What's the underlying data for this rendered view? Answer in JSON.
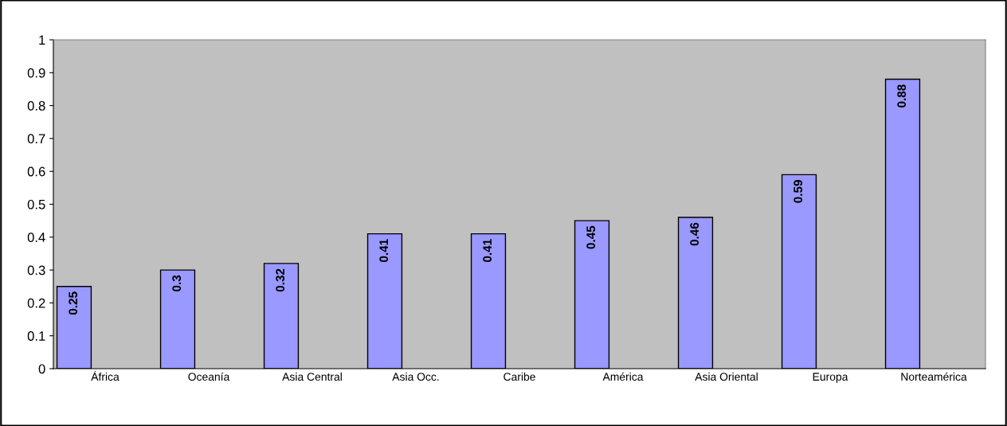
{
  "chart_data": {
    "type": "bar",
    "categories": [
      "África",
      "Oceanía",
      "Asia Central",
      "Asia Occ.",
      "Caribe",
      "América",
      "Asia Oriental",
      "Europa",
      "Norteamérica"
    ],
    "values": [
      0.25,
      0.3,
      0.32,
      0.41,
      0.41,
      0.45,
      0.46,
      0.59,
      0.88
    ],
    "color": "#9999ff",
    "ylim": [
      0,
      1
    ],
    "yticks": [
      0,
      0.1,
      0.2,
      0.3,
      0.4,
      0.5,
      0.6,
      0.7,
      0.8,
      0.9,
      1
    ],
    "data_labels": true,
    "grid": false,
    "legend": false
  }
}
